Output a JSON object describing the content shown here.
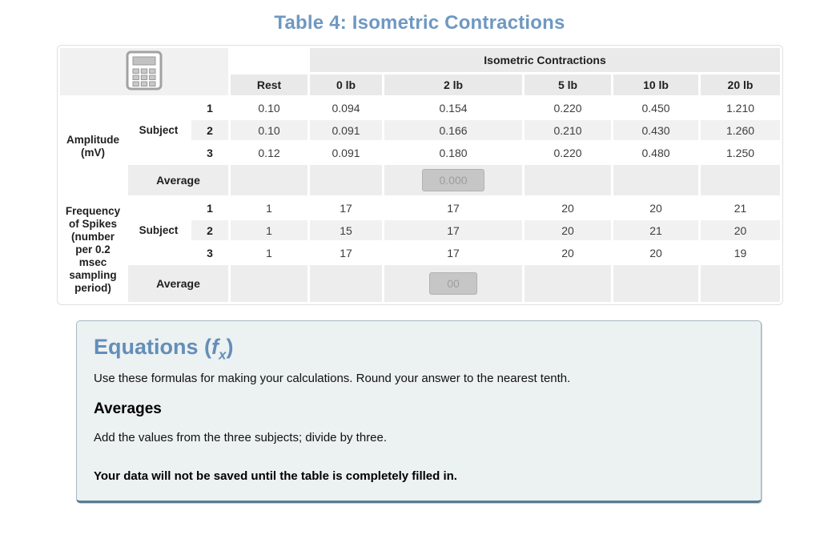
{
  "page": {
    "title": "Table 4: Isometric Contractions"
  },
  "table": {
    "corner_icon": "calculator-icon",
    "group_header": "Isometric Contractions",
    "col_headers": [
      "Rest",
      "0 lb",
      "2 lb",
      "5 lb",
      "10 lb",
      "20 lb"
    ],
    "subject_label": "Subject",
    "average_label": "Average",
    "groups": [
      {
        "id": "amplitude",
        "label_lines": [
          "Amplitude",
          "(mV)"
        ],
        "rows": [
          {
            "num": "1",
            "values": [
              "0.10",
              "0.094",
              "0.154",
              "0.220",
              "0.450",
              "1.210"
            ]
          },
          {
            "num": "2",
            "values": [
              "0.10",
              "0.091",
              "0.166",
              "0.210",
              "0.430",
              "1.260"
            ]
          },
          {
            "num": "3",
            "values": [
              "0.12",
              "0.091",
              "0.180",
              "0.220",
              "0.480",
              "1.250"
            ]
          }
        ],
        "average_input": {
          "column": "2 lb",
          "value": "",
          "placeholder": "0.000"
        }
      },
      {
        "id": "frequency",
        "label_lines": [
          "Frequency",
          "of Spikes",
          "(number",
          "per 0.2",
          "msec",
          "sampling",
          "period)"
        ],
        "rows": [
          {
            "num": "1",
            "values": [
              "1",
              "17",
              "17",
              "20",
              "20",
              "21"
            ]
          },
          {
            "num": "2",
            "values": [
              "1",
              "15",
              "17",
              "20",
              "21",
              "20"
            ]
          },
          {
            "num": "3",
            "values": [
              "1",
              "17",
              "17",
              "20",
              "20",
              "19"
            ]
          }
        ],
        "average_input": {
          "column": "2 lb",
          "value": "",
          "placeholder": "00"
        }
      }
    ]
  },
  "equations_panel": {
    "heading_pre": "Equations (",
    "heading_f": "f",
    "heading_sub": "x",
    "heading_post": ")",
    "intro": "Use these formulas for making your calculations. Round your answer to the nearest tenth.",
    "subheading": "Averages",
    "body": "Add the values from the three subjects; divide by three.",
    "warning": "Your data will not be saved until the table is completely filled in."
  },
  "colors": {
    "title_blue": "#6e98c2",
    "equations_heading_blue": "#638eb8",
    "panel_background": "#ecf1f2",
    "panel_border": "#a6b6c1",
    "panel_border_bottom": "#577c93",
    "header_cell_gray": "#e9e9e9",
    "stripe_gray": "#f1f1f1",
    "average_row_gray": "#ededed",
    "input_gray": "#c6c6c6"
  }
}
